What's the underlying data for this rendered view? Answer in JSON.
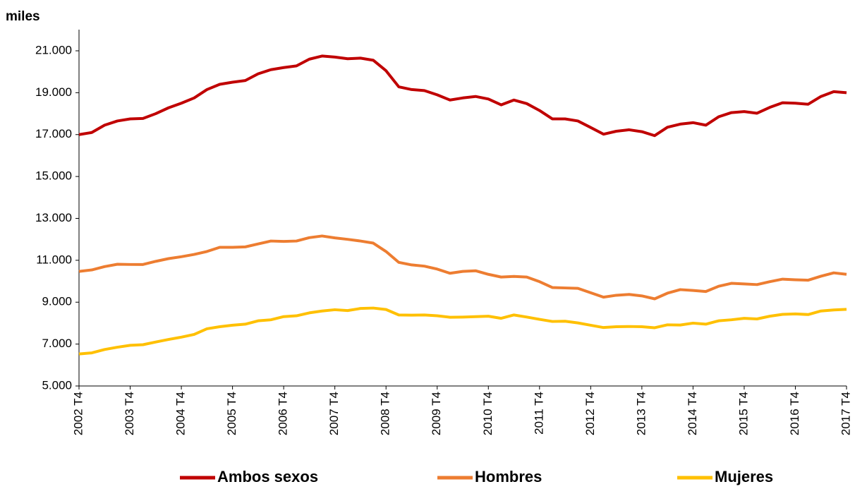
{
  "chart_data": {
    "type": "line",
    "y_label": "miles",
    "categories": [
      "2002 T4",
      null,
      null,
      null,
      "2003 T4",
      null,
      null,
      null,
      "2004 T4",
      null,
      null,
      null,
      "2005 T4",
      null,
      null,
      null,
      "2006 T4",
      null,
      null,
      null,
      "2007 T4",
      null,
      null,
      null,
      "2008 T4",
      null,
      null,
      null,
      "2009 T4",
      null,
      null,
      null,
      "2010 T4",
      null,
      null,
      null,
      "2011 T4",
      null,
      null,
      null,
      "2012 T4",
      null,
      null,
      null,
      "2013 T4",
      null,
      null,
      null,
      "2014 T4",
      null,
      null,
      null,
      "2015 T4",
      null,
      null,
      null,
      "2016 T4",
      null,
      null,
      null,
      "2017 T4"
    ],
    "series": [
      {
        "name": "Ambos sexos",
        "color": "#c00000",
        "values": [
          17000,
          17100,
          17450,
          17650,
          17750,
          17770,
          18000,
          18280,
          18500,
          18750,
          19150,
          19400,
          19500,
          19580,
          19900,
          20100,
          20200,
          20280,
          20600,
          20750,
          20700,
          20620,
          20650,
          20550,
          20050,
          19280,
          19150,
          19100,
          18900,
          18650,
          18750,
          18820,
          18700,
          18420,
          18650,
          18480,
          18150,
          17750,
          17750,
          17650,
          17340,
          17020,
          17160,
          17230,
          17140,
          16950,
          17350,
          17500,
          17570,
          17450,
          17850,
          18050,
          18100,
          18020,
          18300,
          18520,
          18500,
          18450,
          18820,
          19050,
          19000
        ]
      },
      {
        "name": "Hombres",
        "color": "#ed7d31",
        "values": [
          10470,
          10540,
          10700,
          10810,
          10800,
          10800,
          10950,
          11080,
          11170,
          11280,
          11420,
          11620,
          11620,
          11640,
          11780,
          11920,
          11900,
          11920,
          12080,
          12160,
          12070,
          12000,
          11920,
          11820,
          11420,
          10900,
          10780,
          10720,
          10580,
          10380,
          10470,
          10500,
          10330,
          10200,
          10230,
          10200,
          9980,
          9700,
          9680,
          9660,
          9450,
          9240,
          9330,
          9370,
          9300,
          9160,
          9430,
          9600,
          9560,
          9510,
          9760,
          9900,
          9870,
          9840,
          9980,
          10100,
          10070,
          10050,
          10240,
          10400,
          10330
        ]
      },
      {
        "name": "Mujeres",
        "color": "#ffc000",
        "values": [
          6530,
          6580,
          6740,
          6850,
          6940,
          6970,
          7100,
          7220,
          7330,
          7460,
          7730,
          7830,
          7900,
          7950,
          8110,
          8160,
          8310,
          8350,
          8490,
          8580,
          8640,
          8600,
          8700,
          8720,
          8650,
          8390,
          8380,
          8390,
          8350,
          8280,
          8290,
          8310,
          8330,
          8230,
          8390,
          8290,
          8180,
          8080,
          8090,
          8010,
          7900,
          7790,
          7830,
          7840,
          7830,
          7780,
          7920,
          7910,
          8000,
          7950,
          8110,
          8160,
          8230,
          8200,
          8330,
          8420,
          8440,
          8410,
          8580,
          8630,
          8660
        ]
      }
    ],
    "ylim": [
      5000,
      21000
    ],
    "yticks": [
      {
        "value": 5000,
        "label": "5.000"
      },
      {
        "value": 7000,
        "label": "7.000"
      },
      {
        "value": 9000,
        "label": "9.000"
      },
      {
        "value": 11000,
        "label": "11.000"
      },
      {
        "value": 13000,
        "label": "13.000"
      },
      {
        "value": 15000,
        "label": "15.000"
      },
      {
        "value": 17000,
        "label": "17.000"
      },
      {
        "value": 19000,
        "label": "19.000"
      },
      {
        "value": 21000,
        "label": "21.000"
      }
    ],
    "grid": false,
    "legend": "bottom"
  }
}
